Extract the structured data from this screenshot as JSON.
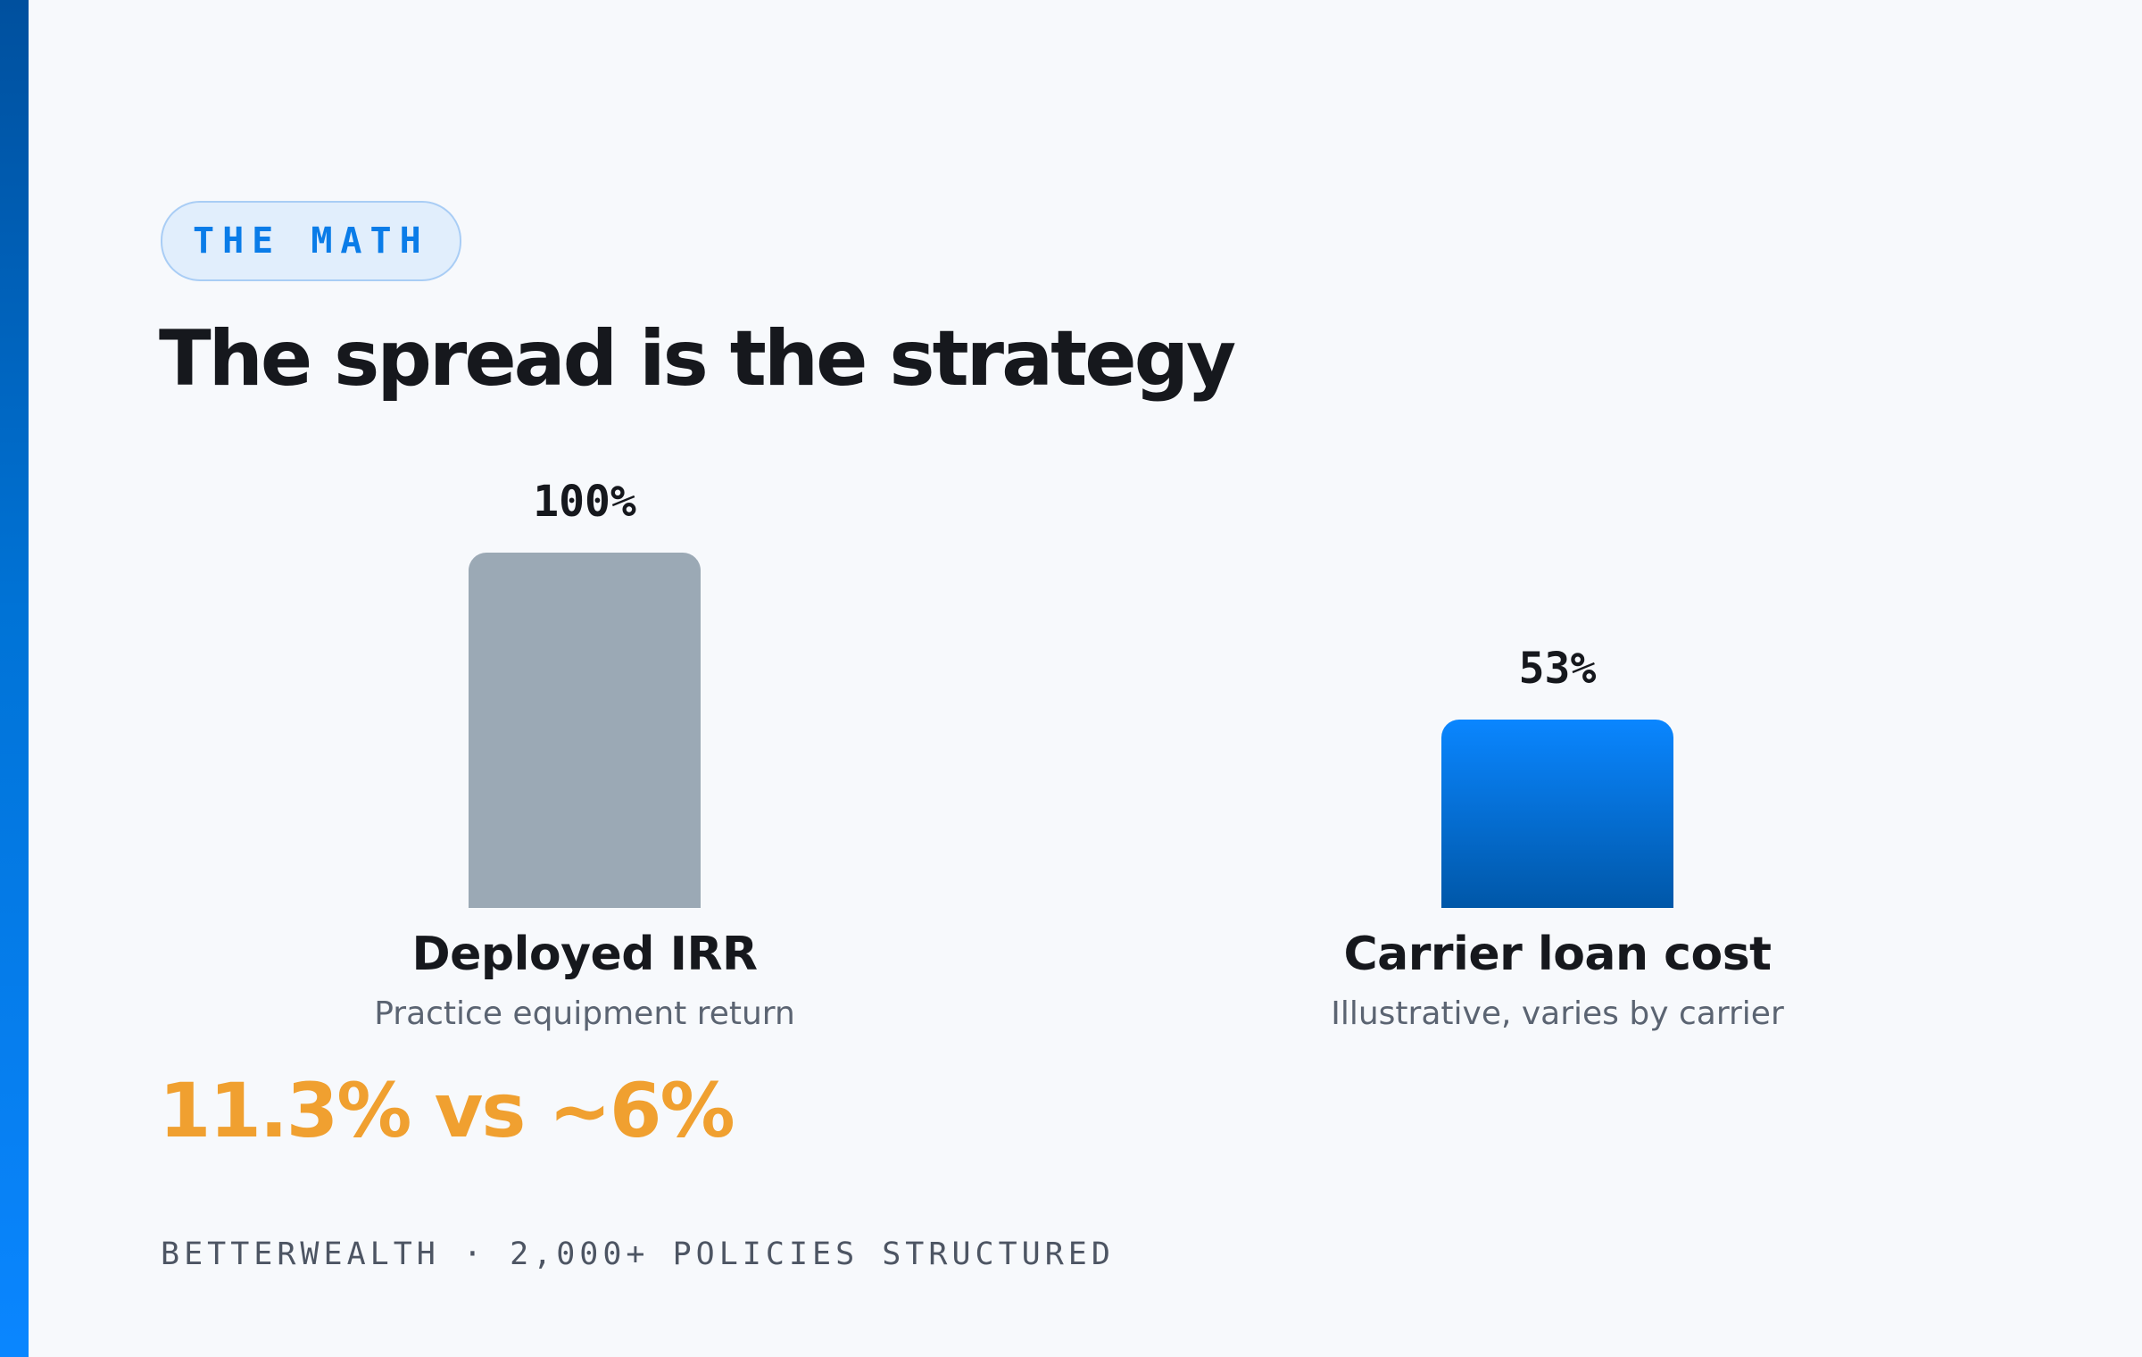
{
  "eyebrow": "THE MATH",
  "headline": "The spread is the strategy",
  "chart_data": {
    "type": "bar",
    "categories": [
      "Deployed IRR",
      "Carrier loan cost"
    ],
    "subtitles": [
      "Practice equipment return",
      "Illustrative, varies by carrier"
    ],
    "values": [
      100,
      53
    ],
    "value_labels": [
      "100%",
      "53%"
    ],
    "ylim": [
      0,
      100
    ],
    "colors": [
      "#9ba9b5",
      "#0a86ff"
    ],
    "grid": false
  },
  "callout": "11.3% vs ~6%",
  "footer": "BETTERWEALTH · 2,000+ POLICIES STRUCTURED"
}
